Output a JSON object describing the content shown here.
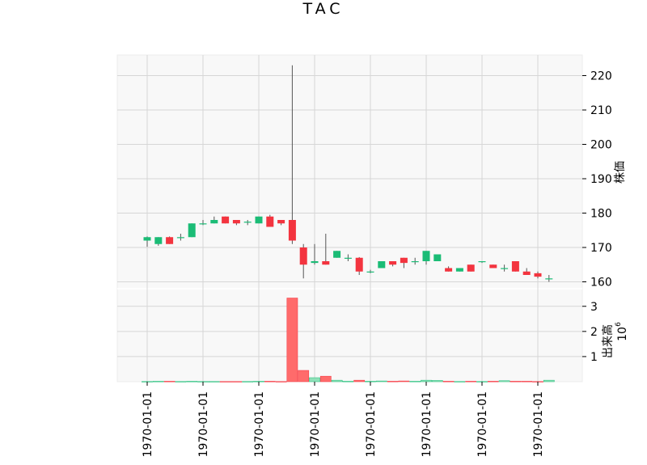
{
  "chart_data": {
    "type": "candlestick",
    "title": "TAC",
    "up_color": "#1bbc76",
    "down_color": "#f3343f",
    "grid": true,
    "price_panel": {
      "ylabel": "株価",
      "ylim": [
        158,
        226
      ],
      "yticks": [
        160,
        170,
        180,
        190,
        200,
        210,
        220
      ],
      "axis_side": "right"
    },
    "volume_panel": {
      "ylabel": "出来高",
      "scale_label": "10",
      "scale_exponent": "6",
      "ylim": [
        0,
        3.7
      ],
      "yticks": [
        1,
        2,
        3
      ],
      "axis_side": "right"
    },
    "xtick_labels": [
      "1970-01-01",
      "1970-01-01",
      "1970-01-01",
      "1970-01-01",
      "1970-01-01",
      "1970-01-01",
      "1970-01-01",
      "1970-01-01"
    ],
    "candles": [
      {
        "o": 172.0,
        "h": 173.2,
        "l": 170.2,
        "c": 173.0,
        "v": 0.01
      },
      {
        "o": 171.0,
        "h": 173.0,
        "l": 170.5,
        "c": 173.0,
        "v": 0.02
      },
      {
        "o": 173.0,
        "h": 173.2,
        "l": 171.0,
        "c": 171.0,
        "v": 0.02
      },
      {
        "o": 173.0,
        "h": 174.0,
        "l": 172.0,
        "c": 173.0,
        "v": 0.01
      },
      {
        "o": 173.0,
        "h": 177.0,
        "l": 173.0,
        "c": 177.0,
        "v": 0.02
      },
      {
        "o": 177.0,
        "h": 178.0,
        "l": 176.5,
        "c": 177.0,
        "v": 0.01
      },
      {
        "o": 177.0,
        "h": 179.0,
        "l": 177.0,
        "c": 178.0,
        "v": 0.01
      },
      {
        "o": 179.0,
        "h": 179.0,
        "l": 177.0,
        "c": 177.0,
        "v": 0.01
      },
      {
        "o": 178.0,
        "h": 178.0,
        "l": 176.5,
        "c": 177.0,
        "v": 0.01
      },
      {
        "o": 177.5,
        "h": 178.0,
        "l": 176.5,
        "c": 177.5,
        "v": 0.01
      },
      {
        "o": 177.0,
        "h": 179.0,
        "l": 177.0,
        "c": 179.0,
        "v": 0.02
      },
      {
        "o": 179.0,
        "h": 179.5,
        "l": 176.0,
        "c": 176.0,
        "v": 0.02
      },
      {
        "o": 178.0,
        "h": 178.0,
        "l": 176.5,
        "c": 177.0,
        "v": 0.01
      },
      {
        "o": 178.0,
        "h": 223.0,
        "l": 171.0,
        "c": 172.0,
        "v": 3.33
      },
      {
        "o": 170.0,
        "h": 171.0,
        "l": 161.0,
        "c": 165.0,
        "v": 0.45
      },
      {
        "o": 165.5,
        "h": 171.0,
        "l": 165.0,
        "c": 166.0,
        "v": 0.16
      },
      {
        "o": 166.0,
        "h": 174.0,
        "l": 165.0,
        "c": 165.0,
        "v": 0.22
      },
      {
        "o": 167.0,
        "h": 169.0,
        "l": 167.0,
        "c": 169.0,
        "v": 0.06
      },
      {
        "o": 167.0,
        "h": 168.0,
        "l": 166.0,
        "c": 167.0,
        "v": 0.02
      },
      {
        "o": 167.0,
        "h": 167.2,
        "l": 162.0,
        "c": 163.0,
        "v": 0.06
      },
      {
        "o": 163.0,
        "h": 163.5,
        "l": 162.5,
        "c": 163.0,
        "v": 0.02
      },
      {
        "o": 164.0,
        "h": 166.0,
        "l": 164.0,
        "c": 166.0,
        "v": 0.03
      },
      {
        "o": 166.0,
        "h": 166.0,
        "l": 164.5,
        "c": 165.0,
        "v": 0.02
      },
      {
        "o": 167.0,
        "h": 167.0,
        "l": 164.0,
        "c": 165.5,
        "v": 0.03
      },
      {
        "o": 166.0,
        "h": 167.0,
        "l": 165.0,
        "c": 166.0,
        "v": 0.02
      },
      {
        "o": 166.0,
        "h": 169.0,
        "l": 165.0,
        "c": 169.0,
        "v": 0.06
      },
      {
        "o": 166.0,
        "h": 168.0,
        "l": 166.0,
        "c": 168.0,
        "v": 0.05
      },
      {
        "o": 164.0,
        "h": 164.5,
        "l": 163.0,
        "c": 163.0,
        "v": 0.02
      },
      {
        "o": 163.0,
        "h": 164.0,
        "l": 163.0,
        "c": 164.0,
        "v": 0.01
      },
      {
        "o": 165.0,
        "h": 165.0,
        "l": 163.0,
        "c": 163.0,
        "v": 0.02
      },
      {
        "o": 166.0,
        "h": 166.0,
        "l": 165.5,
        "c": 166.0,
        "v": 0.01
      },
      {
        "o": 165.0,
        "h": 165.0,
        "l": 164.0,
        "c": 164.0,
        "v": 0.02
      },
      {
        "o": 164.0,
        "h": 165.0,
        "l": 163.0,
        "c": 164.0,
        "v": 0.04
      },
      {
        "o": 166.0,
        "h": 166.0,
        "l": 163.0,
        "c": 163.0,
        "v": 0.02
      },
      {
        "o": 163.0,
        "h": 164.0,
        "l": 162.0,
        "c": 162.0,
        "v": 0.02
      },
      {
        "o": 162.5,
        "h": 163.0,
        "l": 161.0,
        "c": 161.5,
        "v": 0.01
      },
      {
        "o": 161.0,
        "h": 162.0,
        "l": 160.0,
        "c": 161.0,
        "v": 0.06
      }
    ]
  }
}
